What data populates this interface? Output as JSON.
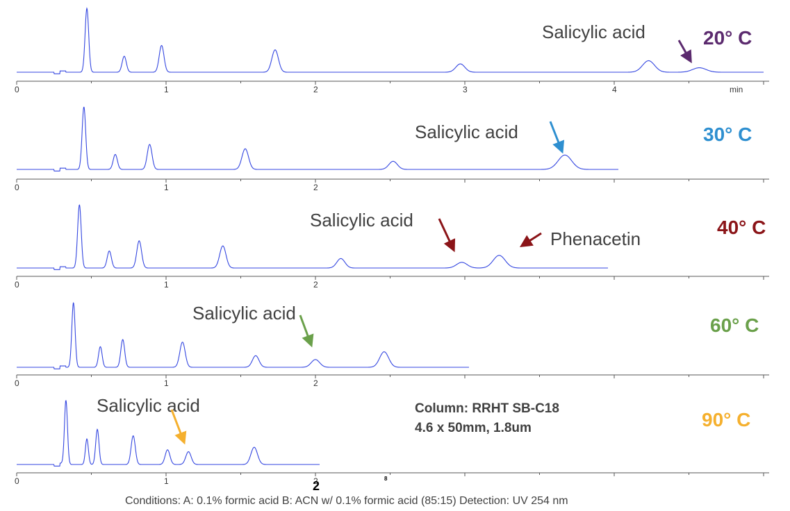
{
  "chart_data": [
    {
      "type": "line",
      "temperature": "20° C",
      "color": "#5b2a6e",
      "xlim": [
        0,
        5.0
      ],
      "x_ticks": [
        "0",
        "1",
        "2",
        "3",
        "4"
      ],
      "x_unit": "min",
      "peaks": [
        {
          "rt": 0.47,
          "height": 1.0,
          "width": 0.012
        },
        {
          "rt": 0.72,
          "height": 0.25,
          "width": 0.014
        },
        {
          "rt": 0.97,
          "height": 0.42,
          "width": 0.016
        },
        {
          "rt": 1.73,
          "height": 0.35,
          "width": 0.022
        },
        {
          "rt": 2.97,
          "height": 0.13,
          "width": 0.03
        },
        {
          "rt": 4.23,
          "height": 0.18,
          "width": 0.04
        },
        {
          "rt": 4.57,
          "height": 0.07,
          "width": 0.045
        }
      ],
      "annotations": [
        {
          "text": "Salicylic acid",
          "target_rt": 4.57
        }
      ],
      "trace_end": 5.0
    },
    {
      "type": "line",
      "temperature": "30° C",
      "color": "#2e8fd0",
      "xlim": [
        0,
        5.0
      ],
      "x_ticks": [
        "0",
        "1",
        "2"
      ],
      "peaks": [
        {
          "rt": 0.45,
          "height": 1.0,
          "width": 0.012
        },
        {
          "rt": 0.66,
          "height": 0.24,
          "width": 0.014
        },
        {
          "rt": 0.89,
          "height": 0.4,
          "width": 0.016
        },
        {
          "rt": 1.53,
          "height": 0.33,
          "width": 0.022
        },
        {
          "rt": 2.52,
          "height": 0.13,
          "width": 0.028
        },
        {
          "rt": 3.67,
          "height": 0.23,
          "width": 0.045
        }
      ],
      "annotations": [
        {
          "text": "Salicylic acid",
          "target_rt": 3.67
        }
      ],
      "trace_end": 4.03
    },
    {
      "type": "line",
      "temperature": "40° C",
      "color": "#8b1418",
      "xlim": [
        0,
        5.0
      ],
      "x_ticks": [
        "0",
        "1",
        "2"
      ],
      "peaks": [
        {
          "rt": 0.42,
          "height": 1.0,
          "width": 0.012
        },
        {
          "rt": 0.62,
          "height": 0.27,
          "width": 0.014
        },
        {
          "rt": 0.82,
          "height": 0.43,
          "width": 0.016
        },
        {
          "rt": 1.38,
          "height": 0.35,
          "width": 0.021
        },
        {
          "rt": 2.17,
          "height": 0.15,
          "width": 0.027
        },
        {
          "rt": 2.98,
          "height": 0.09,
          "width": 0.035
        },
        {
          "rt": 3.23,
          "height": 0.2,
          "width": 0.04
        }
      ],
      "annotations": [
        {
          "text": "Salicylic acid",
          "target_rt": 2.98
        },
        {
          "text": "Phenacetin",
          "target_rt": 3.23
        }
      ],
      "trace_end": 3.96
    },
    {
      "type": "line",
      "temperature": "60° C",
      "color": "#6aa04a",
      "xlim": [
        0,
        5.0
      ],
      "x_ticks": [
        "0",
        "1",
        "2"
      ],
      "peaks": [
        {
          "rt": 0.38,
          "height": 1.0,
          "width": 0.011
        },
        {
          "rt": 0.56,
          "height": 0.32,
          "width": 0.012
        },
        {
          "rt": 0.71,
          "height": 0.43,
          "width": 0.013
        },
        {
          "rt": 1.11,
          "height": 0.39,
          "width": 0.018
        },
        {
          "rt": 1.6,
          "height": 0.18,
          "width": 0.022
        },
        {
          "rt": 2.0,
          "height": 0.12,
          "width": 0.028
        },
        {
          "rt": 2.46,
          "height": 0.24,
          "width": 0.03
        }
      ],
      "annotations": [
        {
          "text": "Salicylic acid",
          "target_rt": 2.0
        }
      ],
      "trace_end": 3.03
    },
    {
      "type": "line",
      "temperature": "90° C",
      "color": "#f5b02e",
      "xlim": [
        0,
        5.0
      ],
      "x_ticks": [
        "0",
        "1",
        "2"
      ],
      "peaks": [
        {
          "rt": 0.33,
          "height": 1.0,
          "width": 0.01
        },
        {
          "rt": 0.47,
          "height": 0.4,
          "width": 0.01
        },
        {
          "rt": 0.54,
          "height": 0.55,
          "width": 0.011
        },
        {
          "rt": 0.78,
          "height": 0.45,
          "width": 0.014
        },
        {
          "rt": 1.01,
          "height": 0.23,
          "width": 0.016
        },
        {
          "rt": 1.15,
          "height": 0.2,
          "width": 0.018
        },
        {
          "rt": 1.59,
          "height": 0.27,
          "width": 0.022
        }
      ],
      "annotations": [
        {
          "text": "Salicylic acid",
          "target_rt": 1.15
        }
      ],
      "trace_end": 2.03
    }
  ],
  "trace_color": "#3346e0",
  "column": {
    "line1": "Column: RRHT SB-C18",
    "line2": "4.6 x 50mm, 1.8um"
  },
  "conditions": "Conditions: A: 0.1% formic acid B: ACN w/ 0.1% formic acid (85:15)  Detection: UV 254 nm",
  "stray_tick_labels": [
    "2",
    "8"
  ]
}
